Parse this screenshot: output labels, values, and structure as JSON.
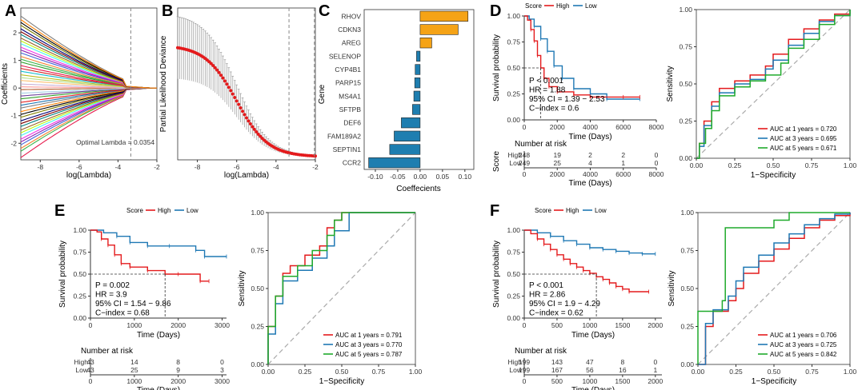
{
  "panel_labels": [
    "A",
    "B",
    "C",
    "D",
    "E",
    "F"
  ],
  "colors": {
    "high": "#e41a1c",
    "low": "#1f78b4",
    "bar_pos": "#f5a316",
    "bar_neg": "#1e7eb0",
    "roc1": "#e41a1c",
    "roc3": "#1f78b4",
    "roc5": "#1faa2b",
    "dots": "#e41a1c"
  },
  "chart_data": [
    {
      "id": "A",
      "type": "line",
      "title": "",
      "xlabel": "log(Lambda)",
      "ylabel": "Coefficients",
      "x_ticks": [
        "-8",
        "-6",
        "-4",
        "-2"
      ],
      "y_ticks": [
        "-2",
        "-1",
        "0",
        "1",
        "2"
      ],
      "xlim": [
        -9,
        -2
      ],
      "ylim": [
        -2.6,
        2.9
      ],
      "annotation": "Optimal Lambda = 0.0354",
      "optimal_log_lambda": -3.34
    },
    {
      "id": "B",
      "type": "scatter",
      "xlabel": "log(Lambda)",
      "ylabel": "Partial Likelihood Deviance",
      "x_ticks": [
        "-8",
        "-6",
        "-4",
        "-2"
      ],
      "xlim": [
        -9,
        -2
      ],
      "ylim": [
        11.5,
        36
      ],
      "vlines": [
        -3.34,
        -2.05
      ],
      "curve_note": "mean deviance falls from about 30 at log(Lambda)=-9 to about 12 near -3, error bars wide at left"
    },
    {
      "id": "C",
      "type": "bar",
      "xlabel": "Coeffecients",
      "ylabel": "Gene",
      "categories": [
        "RHOV",
        "CDKN3",
        "AREG",
        "SELENOP",
        "CYP4B1",
        "PARP15",
        "MS4A1",
        "SFTPB",
        "DEF6",
        "FAM189A2",
        "SEPTIN1",
        "CCR2"
      ],
      "values": [
        0.107,
        0.085,
        0.026,
        -0.008,
        -0.011,
        -0.012,
        -0.014,
        -0.017,
        -0.042,
        -0.058,
        -0.068,
        -0.115
      ],
      "x_ticks": [
        "-0.10",
        "-0.05",
        "0.00",
        "0.05",
        "0.10"
      ],
      "xlim": [
        -0.125,
        0.12
      ]
    },
    {
      "id": "D",
      "type": "line",
      "legend_title": "Score",
      "legend": [
        "High",
        "Low"
      ],
      "xlabel": "Time (Days)",
      "ylabel": "Survival probability",
      "x_ticks": [
        "0",
        "2000",
        "4000",
        "6000",
        "8000"
      ],
      "y_ticks": [
        "0.00",
        "0.25",
        "0.50",
        "0.75",
        "1.00"
      ],
      "xlim": [
        0,
        8000
      ],
      "ylim": [
        0,
        1
      ],
      "median_line": 0.5,
      "high_curve": [
        [
          0,
          1
        ],
        [
          200,
          0.96
        ],
        [
          400,
          0.87
        ],
        [
          600,
          0.76
        ],
        [
          800,
          0.62
        ],
        [
          1000,
          0.5
        ],
        [
          1200,
          0.4
        ],
        [
          1500,
          0.32
        ],
        [
          2000,
          0.27
        ],
        [
          3000,
          0.24
        ],
        [
          4000,
          0.22
        ],
        [
          6000,
          0.22
        ],
        [
          7000,
          0.22
        ]
      ],
      "low_curve": [
        [
          0,
          1
        ],
        [
          300,
          0.97
        ],
        [
          600,
          0.9
        ],
        [
          1000,
          0.78
        ],
        [
          1400,
          0.66
        ],
        [
          1800,
          0.52
        ],
        [
          2300,
          0.4
        ],
        [
          3000,
          0.3
        ],
        [
          4000,
          0.25
        ],
        [
          5000,
          0.2
        ],
        [
          7000,
          0.2
        ]
      ],
      "stats": [
        "P < 0.001",
        "HR = 1.88",
        "95% CI = 1.39 − 2.53",
        "C−index = 0.6"
      ],
      "risk_title": "Number at risk",
      "risk_ylabel": "Score",
      "risk_rows": [
        "High",
        "Low"
      ],
      "risk_high": [
        "248",
        "19",
        "2",
        "2",
        "0"
      ],
      "risk_low": [
        "249",
        "25",
        "4",
        "1",
        "0"
      ],
      "risk_x_ticks": [
        "0",
        "2000",
        "4000",
        "6000",
        "8000"
      ]
    },
    {
      "id": "D_roc",
      "type": "line",
      "xlabel": "1−Specificity",
      "ylabel": "Sensitivity",
      "x_ticks": [
        "0.00",
        "0.25",
        "0.50",
        "0.75",
        "1.00"
      ],
      "y_ticks": [
        "0.00",
        "0.25",
        "0.50",
        "0.75",
        "1.00"
      ],
      "legend": [
        "AUC at 1 years = 0.720",
        "AUC at 3 years = 0.695",
        "AUC at 5 years = 0.671"
      ],
      "series": [
        {
          "name": "1 years",
          "points": [
            [
              0,
              0
            ],
            [
              0.02,
              0.1
            ],
            [
              0.05,
              0.25
            ],
            [
              0.1,
              0.38
            ],
            [
              0.15,
              0.47
            ],
            [
              0.25,
              0.52
            ],
            [
              0.35,
              0.56
            ],
            [
              0.45,
              0.62
            ],
            [
              0.5,
              0.7
            ],
            [
              0.6,
              0.8
            ],
            [
              0.7,
              0.87
            ],
            [
              0.8,
              0.93
            ],
            [
              0.9,
              0.97
            ],
            [
              1,
              1
            ]
          ]
        },
        {
          "name": "3 years",
          "points": [
            [
              0,
              0
            ],
            [
              0.02,
              0.08
            ],
            [
              0.05,
              0.22
            ],
            [
              0.1,
              0.35
            ],
            [
              0.15,
              0.44
            ],
            [
              0.25,
              0.5
            ],
            [
              0.35,
              0.53
            ],
            [
              0.45,
              0.6
            ],
            [
              0.5,
              0.66
            ],
            [
              0.6,
              0.76
            ],
            [
              0.7,
              0.84
            ],
            [
              0.8,
              0.92
            ],
            [
              0.9,
              0.96
            ],
            [
              1,
              1
            ]
          ]
        },
        {
          "name": "5 years",
          "points": [
            [
              0,
              0
            ],
            [
              0.02,
              0.1
            ],
            [
              0.06,
              0.2
            ],
            [
              0.1,
              0.32
            ],
            [
              0.15,
              0.42
            ],
            [
              0.25,
              0.48
            ],
            [
              0.35,
              0.52
            ],
            [
              0.45,
              0.56
            ],
            [
              0.55,
              0.64
            ],
            [
              0.6,
              0.74
            ],
            [
              0.7,
              0.8
            ],
            [
              0.8,
              0.9
            ],
            [
              0.9,
              0.96
            ],
            [
              1,
              1
            ]
          ]
        }
      ]
    },
    {
      "id": "E",
      "type": "line",
      "legend_title": "Score",
      "legend": [
        "High",
        "Low"
      ],
      "xlabel": "Time (Days)",
      "ylabel": "Survival probability",
      "x_ticks": [
        "0",
        "1000",
        "2000",
        "3000"
      ],
      "y_ticks": [
        "0.00",
        "0.25",
        "0.50",
        "0.75",
        "1.00"
      ],
      "xlim": [
        0,
        3100
      ],
      "ylim": [
        0,
        1
      ],
      "median_line": 0.5,
      "high_curve": [
        [
          0,
          1
        ],
        [
          150,
          0.98
        ],
        [
          250,
          0.9
        ],
        [
          400,
          0.83
        ],
        [
          550,
          0.72
        ],
        [
          700,
          0.62
        ],
        [
          900,
          0.58
        ],
        [
          1300,
          0.54
        ],
        [
          1700,
          0.5
        ],
        [
          2000,
          0.5
        ],
        [
          2500,
          0.42
        ],
        [
          2700,
          0.42
        ]
      ],
      "low_curve": [
        [
          0,
          1
        ],
        [
          300,
          0.97
        ],
        [
          600,
          0.93
        ],
        [
          900,
          0.86
        ],
        [
          1300,
          0.82
        ],
        [
          1800,
          0.82
        ],
        [
          2400,
          0.77
        ],
        [
          2600,
          0.7
        ],
        [
          3100,
          0.7
        ]
      ],
      "stats": [
        "P = 0.002",
        "HR = 3.9",
        "95% CI = 1.54 − 9.86",
        "C−index = 0.68"
      ],
      "risk_title": "Number at risk",
      "risk_rows": [
        "High",
        "Low"
      ],
      "risk_high": [
        "43",
        "14",
        "8",
        "0"
      ],
      "risk_low": [
        "43",
        "25",
        "9",
        "3"
      ],
      "risk_x_ticks": [
        "0",
        "1000",
        "2000",
        "3000"
      ]
    },
    {
      "id": "E_roc",
      "type": "line",
      "xlabel": "1−Specificity",
      "ylabel": "Sensitivity",
      "x_ticks": [
        "0.00",
        "0.25",
        "0.50",
        "0.75",
        "1.00"
      ],
      "y_ticks": [
        "0.00",
        "0.25",
        "0.50",
        "0.75",
        "1.00"
      ],
      "legend": [
        "AUC at 1 years = 0.791",
        "AUC at 3 years = 0.770",
        "AUC at 5 years = 0.787"
      ],
      "series": [
        {
          "name": "1 years",
          "points": [
            [
              0,
              0
            ],
            [
              0,
              0.25
            ],
            [
              0.05,
              0.45
            ],
            [
              0.1,
              0.6
            ],
            [
              0.15,
              0.65
            ],
            [
              0.25,
              0.72
            ],
            [
              0.35,
              0.78
            ],
            [
              0.4,
              0.9
            ],
            [
              0.45,
              0.95
            ],
            [
              0.5,
              1
            ],
            [
              1,
              1
            ]
          ]
        },
        {
          "name": "3 years",
          "points": [
            [
              0,
              0
            ],
            [
              0,
              0.2
            ],
            [
              0.05,
              0.4
            ],
            [
              0.1,
              0.55
            ],
            [
              0.2,
              0.62
            ],
            [
              0.3,
              0.7
            ],
            [
              0.4,
              0.78
            ],
            [
              0.45,
              0.88
            ],
            [
              0.55,
              1
            ],
            [
              1,
              1
            ]
          ]
        },
        {
          "name": "5 years",
          "points": [
            [
              0,
              0
            ],
            [
              0,
              0.25
            ],
            [
              0.05,
              0.45
            ],
            [
              0.1,
              0.58
            ],
            [
              0.2,
              0.65
            ],
            [
              0.3,
              0.75
            ],
            [
              0.4,
              0.85
            ],
            [
              0.45,
              0.95
            ],
            [
              0.5,
              1
            ],
            [
              1,
              1
            ]
          ]
        }
      ]
    },
    {
      "id": "F",
      "type": "line",
      "legend_title": "Score",
      "legend": [
        "High",
        "Low"
      ],
      "xlabel": "Time (Days)",
      "ylabel": "Survival probability",
      "x_ticks": [
        "0",
        "500",
        "1000",
        "1500",
        "2000"
      ],
      "y_ticks": [
        "0.00",
        "0.25",
        "0.50",
        "0.75",
        "1.00"
      ],
      "xlim": [
        0,
        2100
      ],
      "ylim": [
        0,
        1
      ],
      "median_line": 0.5,
      "high_curve": [
        [
          0,
          1
        ],
        [
          100,
          0.96
        ],
        [
          200,
          0.9
        ],
        [
          300,
          0.84
        ],
        [
          400,
          0.78
        ],
        [
          500,
          0.72
        ],
        [
          600,
          0.67
        ],
        [
          700,
          0.62
        ],
        [
          800,
          0.58
        ],
        [
          900,
          0.54
        ],
        [
          1000,
          0.51
        ],
        [
          1100,
          0.47
        ],
        [
          1200,
          0.44
        ],
        [
          1300,
          0.4
        ],
        [
          1400,
          0.36
        ],
        [
          1500,
          0.33
        ],
        [
          1600,
          0.3
        ],
        [
          1900,
          0.3
        ]
      ],
      "low_curve": [
        [
          0,
          1
        ],
        [
          200,
          0.97
        ],
        [
          400,
          0.93
        ],
        [
          600,
          0.88
        ],
        [
          800,
          0.84
        ],
        [
          1000,
          0.8
        ],
        [
          1200,
          0.78
        ],
        [
          1400,
          0.76
        ],
        [
          1600,
          0.74
        ],
        [
          1800,
          0.73
        ],
        [
          2000,
          0.73
        ]
      ],
      "stats": [
        "P < 0.001",
        "HR = 2.86",
        "95% CI = 1.9 − 4.29",
        "C−index = 0.62"
      ],
      "risk_title": "Number at risk",
      "risk_rows": [
        "High",
        "Low"
      ],
      "risk_high": [
        "199",
        "143",
        "47",
        "8",
        "0"
      ],
      "risk_low": [
        "199",
        "167",
        "56",
        "16",
        "1"
      ],
      "risk_x_ticks": [
        "0",
        "500",
        "1000",
        "1500",
        "2000"
      ]
    },
    {
      "id": "F_roc",
      "type": "line",
      "xlabel": "1−Specificity",
      "ylabel": "Sensitivity",
      "x_ticks": [
        "0.00",
        "0.25",
        "0.50",
        "0.75",
        "1.00"
      ],
      "y_ticks": [
        "0.00",
        "0.25",
        "0.50",
        "0.75",
        "1.00"
      ],
      "legend": [
        "AUC at 1 years = 0.706",
        "AUC at 3 years = 0.725",
        "AUC at 5 years = 0.842"
      ],
      "series": [
        {
          "name": "1 years",
          "points": [
            [
              0,
              0
            ],
            [
              0.05,
              0.25
            ],
            [
              0.1,
              0.35
            ],
            [
              0.2,
              0.42
            ],
            [
              0.25,
              0.5
            ],
            [
              0.3,
              0.6
            ],
            [
              0.4,
              0.68
            ],
            [
              0.5,
              0.76
            ],
            [
              0.6,
              0.83
            ],
            [
              0.7,
              0.9
            ],
            [
              0.8,
              0.95
            ],
            [
              0.9,
              0.98
            ],
            [
              1,
              1
            ]
          ]
        },
        {
          "name": "3 years",
          "points": [
            [
              0,
              0
            ],
            [
              0.05,
              0.27
            ],
            [
              0.1,
              0.36
            ],
            [
              0.2,
              0.45
            ],
            [
              0.25,
              0.55
            ],
            [
              0.3,
              0.64
            ],
            [
              0.4,
              0.72
            ],
            [
              0.5,
              0.8
            ],
            [
              0.6,
              0.86
            ],
            [
              0.7,
              0.92
            ],
            [
              0.8,
              0.96
            ],
            [
              0.9,
              0.99
            ],
            [
              1,
              1
            ]
          ]
        },
        {
          "name": "5 years",
          "points": [
            [
              0,
              0
            ],
            [
              0,
              0.35
            ],
            [
              0.1,
              0.35
            ],
            [
              0.16,
              0.42
            ],
            [
              0.18,
              0.9
            ],
            [
              0.5,
              0.95
            ],
            [
              0.6,
              1
            ],
            [
              1,
              1
            ]
          ]
        }
      ]
    }
  ]
}
